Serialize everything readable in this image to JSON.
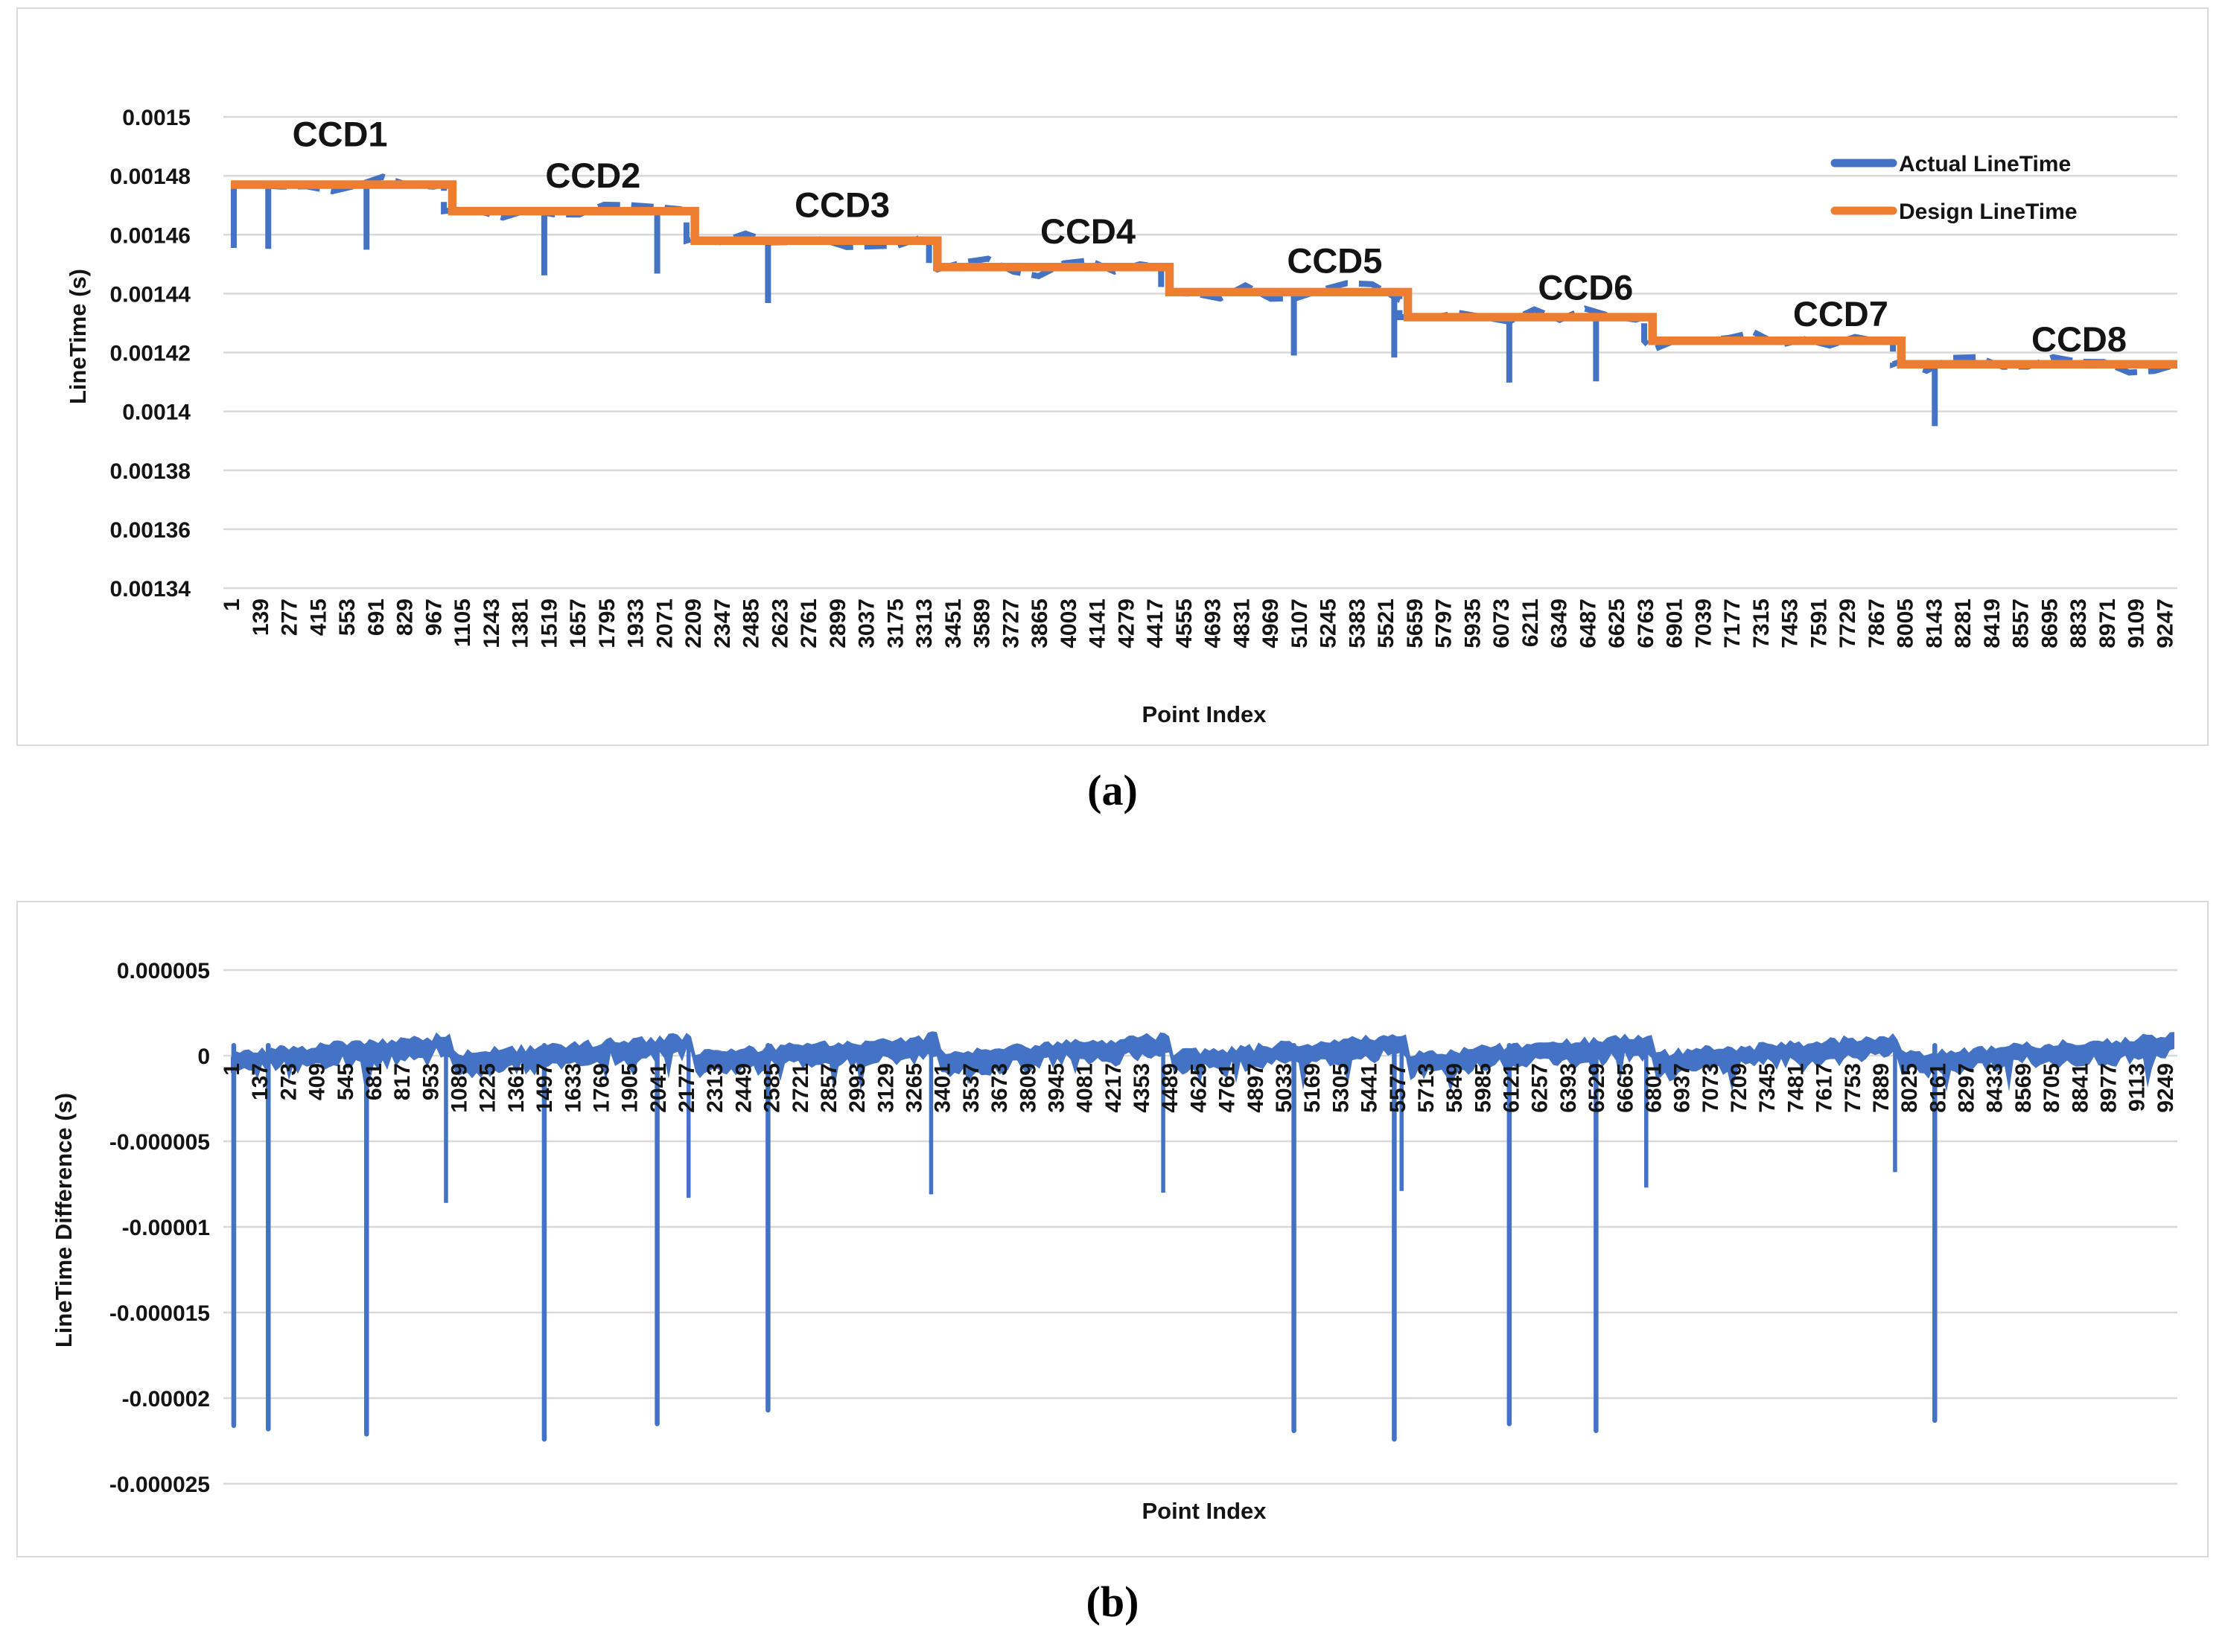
{
  "figure": {
    "background": "#ffffff",
    "grid_color": "#d9d9d9",
    "text_color": "#141414",
    "panel_border_color": "#d9d9d9"
  },
  "chart_data": [
    {
      "id": "a",
      "type": "line",
      "caption": "(a)",
      "xlabel": "Point Index",
      "ylabel": "LineTime (s)",
      "grid": true,
      "legend_position": "top-right",
      "legend": [
        {
          "label": "Actual LineTime",
          "color": "#4472C4"
        },
        {
          "label": "Design LineTime",
          "color": "#ED7D31"
        }
      ],
      "xlim": [
        1,
        9310
      ],
      "ylim": [
        0.00134,
        0.0015
      ],
      "y_ticks": [
        "0.0015",
        "0.00148",
        "0.00146",
        "0.00144",
        "0.00142",
        "0.0014",
        "0.00138",
        "0.00136",
        "0.00134"
      ],
      "x_ticks": [
        1,
        139,
        277,
        415,
        553,
        691,
        829,
        967,
        1105,
        1243,
        1381,
        1519,
        1657,
        1795,
        1933,
        2071,
        2209,
        2347,
        2485,
        2623,
        2761,
        2899,
        3037,
        3175,
        3313,
        3451,
        3589,
        3727,
        3865,
        4003,
        4141,
        4279,
        4417,
        4555,
        4693,
        4831,
        4969,
        5107,
        5245,
        5383,
        5521,
        5659,
        5797,
        5935,
        6073,
        6211,
        6349,
        6487,
        6625,
        6763,
        6901,
        7039,
        7177,
        7315,
        7453,
        7591,
        7729,
        7867,
        8005,
        8143,
        8281,
        8419,
        8557,
        8695,
        8833,
        8971,
        9109,
        9247
      ],
      "annotations": [
        {
          "label": "CCD1",
          "x": 523,
          "y": 0.00149
        },
        {
          "label": "CCD2",
          "x": 1733,
          "y": 0.001476
        },
        {
          "label": "CCD3",
          "x": 2925,
          "y": 0.001466
        },
        {
          "label": "CCD4",
          "x": 4100,
          "y": 0.001457
        },
        {
          "label": "CCD5",
          "x": 5280,
          "y": 0.001447
        },
        {
          "label": "CCD6",
          "x": 6480,
          "y": 0.001438
        },
        {
          "label": "CCD7",
          "x": 7700,
          "y": 0.001429
        },
        {
          "label": "CCD8",
          "x": 8840,
          "y": 0.0014204
        }
      ],
      "series": [
        {
          "name": "Design LineTime",
          "color": "#ED7D31",
          "style": "solid",
          "steps": [
            {
              "x0": 1,
              "x1": 1060,
              "y": 0.001477
            },
            {
              "x0": 1060,
              "x1": 2220,
              "y": 0.001468
            },
            {
              "x0": 2220,
              "x1": 3380,
              "y": 0.001458
            },
            {
              "x0": 3380,
              "x1": 4490,
              "y": 0.001449
            },
            {
              "x0": 4490,
              "x1": 5630,
              "y": 0.0014405
            },
            {
              "x0": 5630,
              "x1": 6800,
              "y": 0.001432
            },
            {
              "x0": 6800,
              "x1": 7990,
              "y": 0.001424
            },
            {
              "x0": 7990,
              "x1": 9310,
              "y": 0.001416
            }
          ]
        },
        {
          "name": "Actual LineTime",
          "color": "#4472C4",
          "style": "dashed",
          "follows_design_with_noise": 8e-07,
          "steps_lead_offset": 40,
          "spikes": [
            {
              "x": 15,
              "y": 0.0014555
            },
            {
              "x": 180,
              "y": 0.0014552
            },
            {
              "x": 650,
              "y": 0.0014549
            },
            {
              "x": 1500,
              "y": 0.0014462
            },
            {
              "x": 2040,
              "y": 0.0014468
            },
            {
              "x": 2570,
              "y": 0.0014368
            },
            {
              "x": 5085,
              "y": 0.001419
            },
            {
              "x": 5565,
              "y": 0.0014183
            },
            {
              "x": 6115,
              "y": 0.0014098
            },
            {
              "x": 6530,
              "y": 0.0014102
            },
            {
              "x": 8150,
              "y": 0.001395
            }
          ]
        }
      ],
      "noise_seed": 11
    },
    {
      "id": "b",
      "type": "line",
      "caption": "(b)",
      "xlabel": "Point Index",
      "ylabel": "LineTime Difference (s)",
      "grid": true,
      "xlim": [
        1,
        9310
      ],
      "ylim": [
        -2.5e-05,
        5e-06
      ],
      "y_ticks": [
        "0.000005",
        "0",
        "-0.000005",
        "-0.00001",
        "-0.000015",
        "-0.00002",
        "-0.000025"
      ],
      "x_ticks": [
        1,
        137,
        273,
        409,
        545,
        681,
        817,
        953,
        1089,
        1225,
        1361,
        1497,
        1633,
        1769,
        1905,
        2041,
        2177,
        2313,
        2449,
        2585,
        2721,
        2857,
        2993,
        3129,
        3265,
        3401,
        3537,
        3673,
        3809,
        3945,
        4081,
        4217,
        4353,
        4489,
        4625,
        4761,
        4897,
        5033,
        5169,
        5305,
        5441,
        5577,
        5713,
        5849,
        5985,
        6121,
        6257,
        6393,
        6529,
        6665,
        6801,
        6937,
        7073,
        7209,
        7345,
        7481,
        7617,
        7753,
        7889,
        8025,
        8161,
        8297,
        8433,
        8569,
        8705,
        8841,
        8977,
        9113,
        9249
      ],
      "series": [
        {
          "name": "LineTime Difference",
          "color": "#4472C4",
          "band_segments": [
            {
              "x0": 1,
              "x1": 1060
            },
            {
              "x0": 1060,
              "x1": 2220
            },
            {
              "x0": 2220,
              "x1": 3380
            },
            {
              "x0": 3380,
              "x1": 4490
            },
            {
              "x0": 4490,
              "x1": 5630
            },
            {
              "x0": 5630,
              "x1": 6800
            },
            {
              "x0": 6800,
              "x1": 7990
            },
            {
              "x0": 7990,
              "x1": 9310
            }
          ],
          "band_profile": {
            "top_start": 1.5e-07,
            "top_end": 1.2e-06,
            "thickness": 1.1e-06
          },
          "deep_spikes": [
            {
              "x": 15,
              "y": -2.16e-05
            },
            {
              "x": 180,
              "y": -2.18e-05
            },
            {
              "x": 650,
              "y": -2.21e-05
            },
            {
              "x": 1500,
              "y": -2.24e-05
            },
            {
              "x": 2040,
              "y": -2.15e-05
            },
            {
              "x": 2570,
              "y": -2.07e-05
            },
            {
              "x": 5085,
              "y": -2.19e-05
            },
            {
              "x": 5565,
              "y": -2.24e-05
            },
            {
              "x": 6115,
              "y": -2.15e-05
            },
            {
              "x": 6530,
              "y": -2.19e-05
            },
            {
              "x": 8150,
              "y": -2.13e-05
            }
          ],
          "medium_spikes": [
            {
              "x": 1030,
              "y": -8.6e-06
            },
            {
              "x": 2190,
              "y": -8.3e-06
            },
            {
              "x": 3350,
              "y": -8.1e-06
            },
            {
              "x": 4460,
              "y": -8e-06
            },
            {
              "x": 5600,
              "y": -7.9e-06
            },
            {
              "x": 6770,
              "y": -7.7e-06
            },
            {
              "x": 7960,
              "y": -6.8e-06
            }
          ]
        }
      ],
      "noise_seed": 7
    }
  ]
}
